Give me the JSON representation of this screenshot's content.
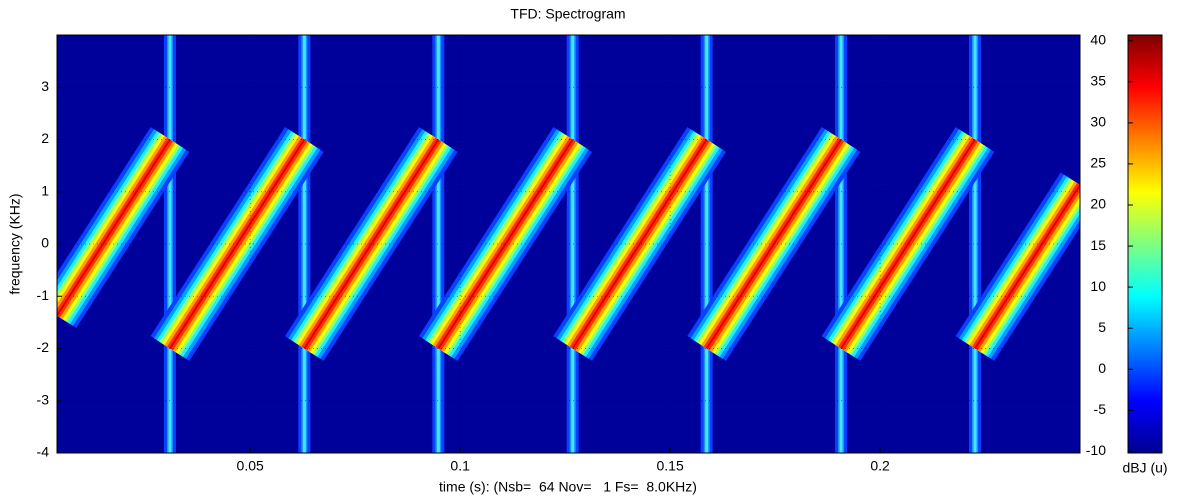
{
  "chart_data": {
    "type": "spectrogram",
    "title": "TFD: Spectrogram",
    "xlabel": "time (s): (Nsb=  64 Nov=   1 Fs=  8.0KHz)",
    "ylabel": "frequency (KHz)",
    "x": [
      0.004,
      0.0309,
      null,
      0.0309,
      0.0629,
      null,
      0.0629,
      0.0948,
      null,
      0.0948,
      0.1268,
      null,
      0.1268,
      0.1587,
      null,
      0.1587,
      0.1907,
      null,
      0.1907,
      0.2226,
      null,
      0.2226,
      0.2476
    ],
    "values": [
      -1.37,
      2,
      null,
      -2,
      2,
      null,
      -2,
      2,
      null,
      -2,
      2,
      null,
      -2,
      2,
      null,
      -2,
      2,
      null,
      -2,
      2,
      null,
      -2,
      1.13
    ],
    "xlim": [
      0.004,
      0.2476
    ],
    "xticks": [
      0.05,
      0.1,
      0.15,
      0.2
    ],
    "ylim": [
      -4,
      4
    ],
    "yticks": [
      -4,
      -3,
      -2,
      -1,
      0,
      1,
      2,
      3
    ],
    "grid": true,
    "colorbar": {
      "label": "dBJ (u)",
      "lim": [
        -10.2,
        40.7
      ],
      "ticks": [
        -10,
        -5,
        0,
        5,
        10,
        15,
        20,
        25,
        30,
        35,
        40
      ]
    }
  }
}
